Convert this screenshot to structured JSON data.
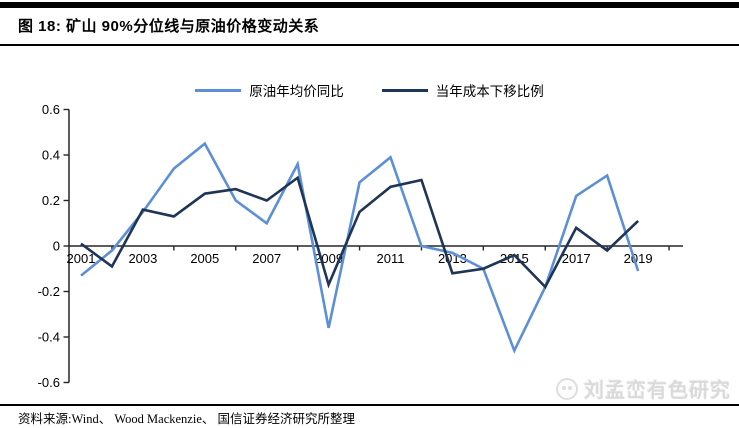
{
  "header": {
    "title": "图 18: 矿山 90%分位线与原油价格变动关系"
  },
  "legend": {
    "items": [
      {
        "label": "原油年均价同比",
        "color": "#5C8FD6"
      },
      {
        "label": "当年成本下移比例",
        "color": "#1F3555"
      }
    ]
  },
  "footer": {
    "source": "资料来源:Wind、 Wood Mackenzie、 国信证券经济研究所整理"
  },
  "watermark": {
    "logo": "panda-logo",
    "text": "刘孟峦有色研究"
  },
  "colors": {
    "oil_series": "#5C8FD6",
    "cost_series": "#1F3555",
    "axis": "#262626"
  },
  "chart_data": {
    "type": "line",
    "title": "矿山90%分位线与原油价格变动关系",
    "x": [
      2001,
      2002,
      2003,
      2004,
      2005,
      2006,
      2007,
      2008,
      2009,
      2010,
      2011,
      2012,
      2013,
      2014,
      2015,
      2016,
      2017,
      2018,
      2019
    ],
    "series": [
      {
        "name": "原油年均价同比",
        "color": "#5C8FD6",
        "values": [
          -0.13,
          -0.02,
          0.15,
          0.34,
          0.45,
          0.2,
          0.1,
          0.36,
          -0.36,
          0.28,
          0.39,
          0.0,
          -0.03,
          -0.1,
          -0.46,
          -0.18,
          0.22,
          0.31,
          -0.11
        ]
      },
      {
        "name": "当年成本下移比例",
        "color": "#1F3555",
        "values": [
          0.01,
          -0.09,
          0.16,
          0.13,
          0.23,
          0.25,
          0.2,
          0.3,
          -0.17,
          0.15,
          0.26,
          0.29,
          -0.12,
          -0.1,
          -0.04,
          -0.18,
          0.08,
          -0.02,
          0.11
        ]
      }
    ],
    "xlabel": "",
    "ylabel": "",
    "ylim": [
      -0.6,
      0.6
    ],
    "yticks": [
      0.6,
      0.4,
      0.2,
      0,
      -0.2,
      -0.4,
      -0.6
    ],
    "xtick_labels": [
      "2001",
      "2003",
      "2005",
      "2007",
      "2009",
      "2011",
      "2013",
      "2015",
      "2017",
      "2019"
    ],
    "grid": false,
    "legend_position": "top"
  }
}
